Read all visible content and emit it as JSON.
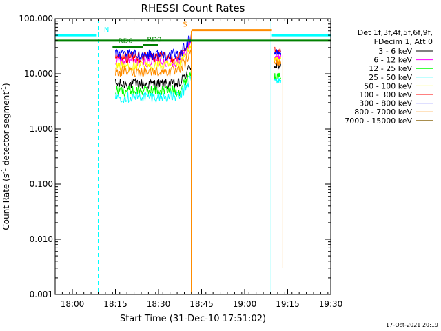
{
  "chart_data": {
    "type": "line",
    "title": "RHESSI Count Rates",
    "xlabel": "Start Time (31-Dec-10 17:51:02)",
    "ylabel_main": "Count Rate (s",
    "ylabel_sup": "-1",
    "ylabel_tail": " detector segment",
    "y_scale": "log",
    "ylim": [
      0.001,
      100
    ],
    "xlim_minutes": [
      -6,
      90
    ],
    "x_ticks": [
      {
        "label": "18:00",
        "minutes": 0
      },
      {
        "label": "18:15",
        "minutes": 15
      },
      {
        "label": "18:30",
        "minutes": 30
      },
      {
        "label": "18:45",
        "minutes": 45
      },
      {
        "label": "19:00",
        "minutes": 60
      },
      {
        "label": "19:15",
        "minutes": 75
      },
      {
        "label": "19:30",
        "minutes": 90
      }
    ],
    "y_ticks": [
      {
        "label": "100.000",
        "value": 100
      },
      {
        "label": "10.000",
        "value": 10
      },
      {
        "label": "1.000",
        "value": 1
      },
      {
        "label": "0.100",
        "value": 0.1
      },
      {
        "label": "0.010",
        "value": 0.01
      },
      {
        "label": "0.001",
        "value": 0.001
      }
    ],
    "legend": {
      "placement": "right",
      "header": [
        "Det 1f,3f,4f,5f,6f,9f,",
        "FDecim 1, Att 0"
      ],
      "entries": [
        {
          "label": "3 - 6 keV",
          "color": "#000000"
        },
        {
          "label": "6 - 12 keV",
          "color": "#ff00ff"
        },
        {
          "label": "12 - 25 keV",
          "color": "#00ff00"
        },
        {
          "label": "25 - 50 keV",
          "color": "#00ffff"
        },
        {
          "label": "50 - 100 keV",
          "color": "#ffff00"
        },
        {
          "label": "100 - 300 keV",
          "color": "#ff0000"
        },
        {
          "label": "300 - 800 keV",
          "color": "#0000ff"
        },
        {
          "label": "800 - 7000 keV",
          "color": "#ff8c00"
        },
        {
          "label": "7000 - 15000 keV",
          "color": "#8b6914"
        }
      ]
    },
    "series": [
      {
        "name": "3 - 6 keV",
        "color": "#000000",
        "segments": [
          {
            "start": 15,
            "end": 41.4,
            "level": 6.5,
            "noise": 0.1
          },
          {
            "start": 70.4,
            "end": 72.6,
            "level": 14,
            "noise": 0.06
          }
        ]
      },
      {
        "name": "6 - 12 keV",
        "color": "#ff00ff",
        "segments": [
          {
            "start": 15,
            "end": 41.4,
            "level": 17,
            "noise": 0.1
          },
          {
            "start": 70.4,
            "end": 72.6,
            "level": 20,
            "noise": 0.06
          }
        ]
      },
      {
        "name": "12 - 25 keV",
        "color": "#00ff00",
        "segments": [
          {
            "start": 15,
            "end": 41.4,
            "level": 5,
            "noise": 0.1
          },
          {
            "start": 70.4,
            "end": 72.6,
            "level": 9,
            "noise": 0.06
          }
        ]
      },
      {
        "name": "25 - 50 keV",
        "color": "#00ffff",
        "segments": [
          {
            "start": 15,
            "end": 41.4,
            "level": 3.8,
            "noise": 0.1
          },
          {
            "start": 70.4,
            "end": 72.6,
            "level": 7.5,
            "noise": 0.06
          }
        ]
      },
      {
        "name": "50 - 100 keV",
        "color": "#ffff00",
        "segments": [
          {
            "start": 15,
            "end": 41.4,
            "level": 14,
            "noise": 0.1
          },
          {
            "start": 70.4,
            "end": 72.6,
            "level": 18,
            "noise": 0.06
          }
        ]
      },
      {
        "name": "100 - 300 keV",
        "color": "#ff0000",
        "segments": [
          {
            "start": 15,
            "end": 41.4,
            "level": 20,
            "noise": 0.1
          },
          {
            "start": 70.4,
            "end": 72.6,
            "level": 27,
            "noise": 0.06
          }
        ]
      },
      {
        "name": "300 - 800 keV",
        "color": "#0000ff",
        "segments": [
          {
            "start": 15,
            "end": 41.4,
            "level": 22,
            "noise": 0.1
          },
          {
            "start": 70.4,
            "end": 72.6,
            "level": 24,
            "noise": 0.06
          }
        ]
      },
      {
        "name": "800 - 7000 keV",
        "color": "#ff8c00",
        "segments": [
          {
            "start": 15,
            "end": 41.4,
            "level": 11,
            "noise": 0.1
          },
          {
            "start": 70.4,
            "end": 72.6,
            "level": 16,
            "noise": 0.06
          }
        ]
      },
      {
        "name": "7000 - 15000 keV",
        "color": "#8b6914",
        "segments": []
      }
    ],
    "flag_bars": [
      {
        "label": "N",
        "color": "#00ffff",
        "start": -6,
        "end": 8.5,
        "value": 50,
        "label_at": 11
      },
      {
        "label": "",
        "color": "#00ffff",
        "start": 69.5,
        "end": 90,
        "value": 50,
        "label_at": null
      },
      {
        "label": "",
        "color": "#008000",
        "start": -6,
        "end": 90,
        "value": 40,
        "label_at": null
      },
      {
        "label": "RD6",
        "color": "#008000",
        "start": 14,
        "end": 24.5,
        "value": 31,
        "label_at": 16
      },
      {
        "label": "RD0",
        "color": "#008000",
        "start": 24.5,
        "end": 30,
        "value": 33,
        "label_at": 26
      },
      {
        "label": "S",
        "color": "#ff8c00",
        "start": 41.5,
        "end": 69.5,
        "value": 62,
        "label_at": 38.5
      }
    ],
    "vertical_markers": [
      {
        "minutes": -6,
        "color": "#00ffff",
        "dashed": false
      },
      {
        "minutes": 9,
        "color": "#00ffff",
        "dashed": true
      },
      {
        "minutes": 69.2,
        "color": "#00ffff",
        "dashed": false
      },
      {
        "minutes": 87,
        "color": "#00ffff",
        "dashed": true
      }
    ],
    "spike_lines": [
      {
        "minutes": 41.4,
        "top": 60,
        "bottom": 0.001,
        "color": "#ff8c00"
      },
      {
        "minutes": 73.3,
        "top": 22,
        "bottom": 0.003,
        "color": "#ff8c00"
      }
    ],
    "footer_timestamp": "17-Oct-2021 20:19"
  }
}
